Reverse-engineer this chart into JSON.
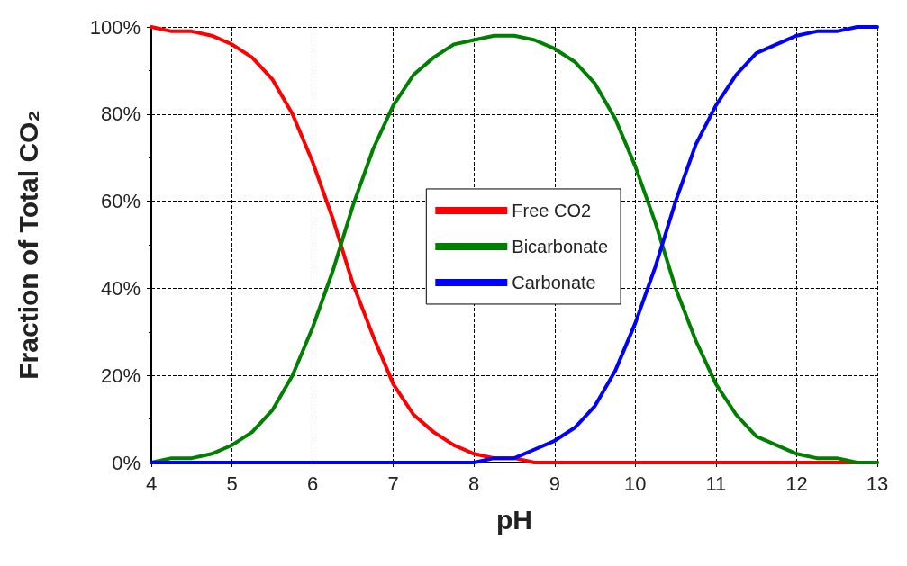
{
  "chart_data": {
    "type": "line",
    "xlabel": "pH",
    "ylabel": "Fraction of Total CO₂",
    "x": [
      4,
      4.25,
      4.5,
      4.75,
      5,
      5.25,
      5.5,
      5.75,
      6,
      6.25,
      6.5,
      6.75,
      7,
      7.25,
      7.5,
      7.75,
      8,
      8.25,
      8.5,
      8.75,
      9,
      9.25,
      9.5,
      9.75,
      10,
      10.25,
      10.5,
      10.75,
      11,
      11.25,
      11.5,
      11.75,
      12,
      12.25,
      12.5,
      12.75,
      13
    ],
    "series": [
      {
        "name": "Free CO2",
        "color": "#ff0000",
        "values": [
          100,
          99,
          99,
          98,
          96,
          93,
          88,
          80,
          69,
          56,
          41,
          29,
          18,
          11,
          7,
          4,
          2,
          1,
          1,
          0,
          0,
          0,
          0,
          0,
          0,
          0,
          0,
          0,
          0,
          0,
          0,
          0,
          0,
          0,
          0,
          0,
          0
        ]
      },
      {
        "name": "Bicarbonate",
        "color": "#008000",
        "values": [
          0,
          1,
          1,
          2,
          4,
          7,
          12,
          20,
          31,
          44,
          59,
          72,
          82,
          89,
          93,
          96,
          97,
          98,
          98,
          97,
          95,
          92,
          87,
          79,
          68,
          55,
          40,
          28,
          18,
          11,
          6,
          4,
          2,
          1,
          1,
          0,
          0
        ]
      },
      {
        "name": "Carbonate",
        "color": "#0000ff",
        "values": [
          0,
          0,
          0,
          0,
          0,
          0,
          0,
          0,
          0,
          0,
          0,
          0,
          0,
          0,
          0,
          0,
          0,
          1,
          1,
          3,
          5,
          8,
          13,
          21,
          32,
          45,
          60,
          73,
          82,
          89,
          94,
          96,
          98,
          99,
          99,
          100,
          100
        ]
      }
    ],
    "xlim": [
      4,
      13
    ],
    "xticks": [
      4,
      5,
      6,
      7,
      8,
      9,
      10,
      11,
      12,
      13
    ],
    "ylim": [
      0,
      100
    ],
    "yticks": [
      {
        "value": 0,
        "label": "0%"
      },
      {
        "value": 20,
        "label": "20%"
      },
      {
        "value": 40,
        "label": "40%"
      },
      {
        "value": 60,
        "label": "60%"
      },
      {
        "value": 80,
        "label": "80%"
      },
      {
        "value": 100,
        "label": "100%"
      }
    ],
    "grid": true,
    "legend": "center",
    "marker": "none",
    "line_style": "solid"
  }
}
